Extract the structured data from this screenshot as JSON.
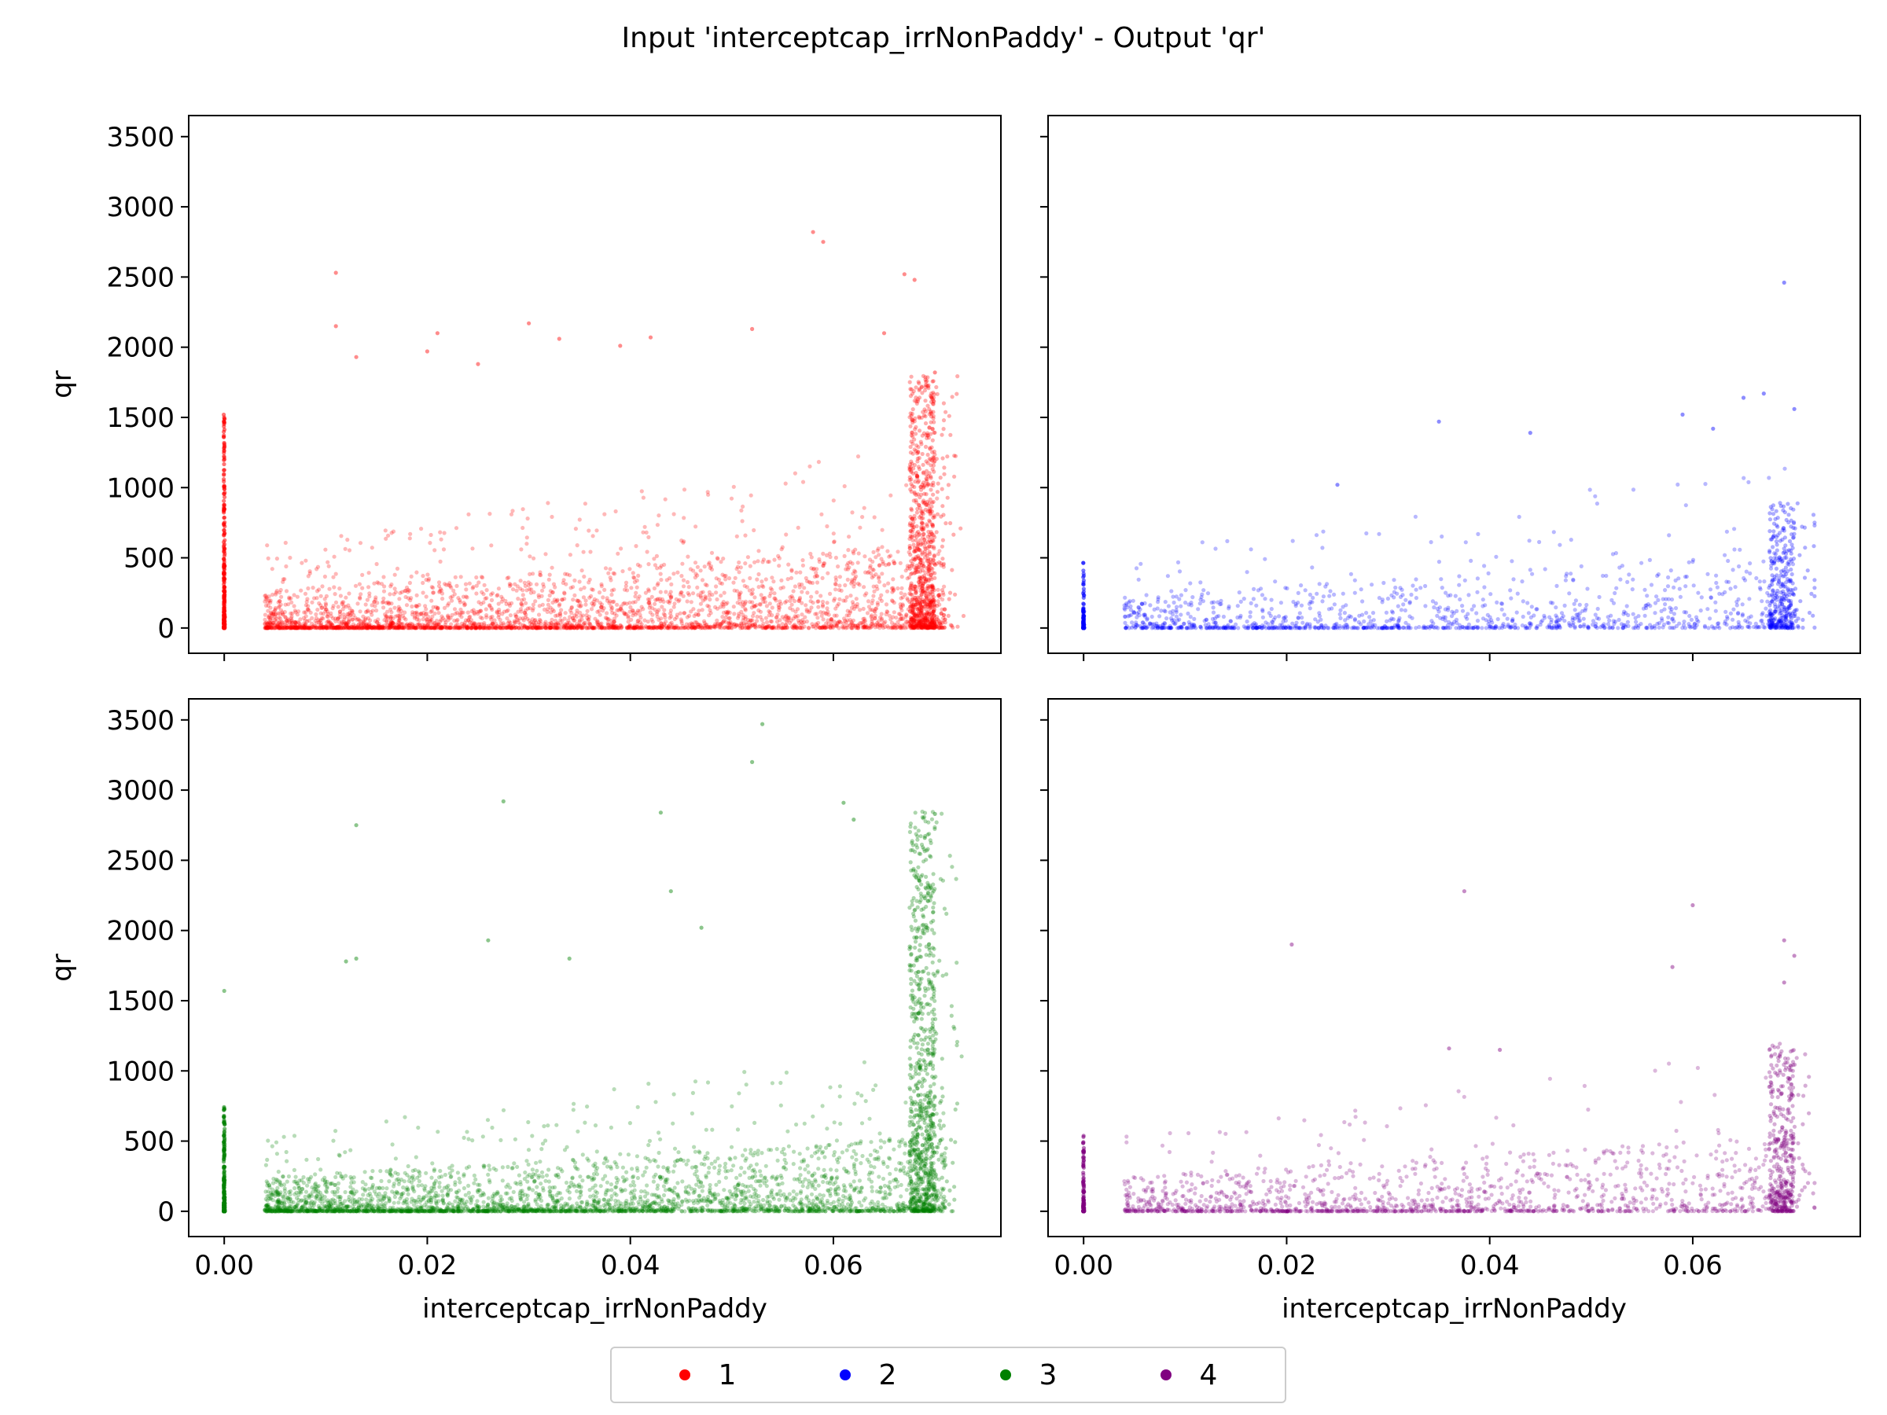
{
  "figure": {
    "suptitle": "Input 'interceptcap_irrNonPaddy' - Output 'qr'"
  },
  "legend": {
    "entries": [
      {
        "label": "1",
        "color": "#ff0000"
      },
      {
        "label": "2",
        "color": "#0000ff"
      },
      {
        "label": "3",
        "color": "#008000"
      },
      {
        "label": "4",
        "color": "#800080"
      }
    ]
  },
  "chart_data": [
    {
      "type": "scatter",
      "panel": "top-left",
      "series_label": "1",
      "color": "#ff0000",
      "xlabel": "",
      "ylabel": "qr",
      "xlim": [
        -0.0035,
        0.0765
      ],
      "ylim": [
        -180,
        3650
      ],
      "xticks": [
        0.0,
        0.02,
        0.04,
        0.06
      ],
      "show_xtick_labels": false,
      "yticks": [
        0,
        500,
        1000,
        1500,
        2000,
        2500,
        3000,
        3500
      ],
      "show_ytick_labels": true,
      "ytick_labels": [
        "0",
        "500",
        "1000",
        "1500",
        "2000",
        "2500",
        "3000",
        "3500"
      ],
      "distribution": {
        "point_count": 4200,
        "x_range": [
          0.0,
          0.073
        ],
        "typical_y_max": 500,
        "right_edge_cluster_x": 0.07,
        "right_edge_cluster_y_max": 1800,
        "zero_column_y_max": 1520
      },
      "outliers": [
        [
          0.011,
          2530
        ],
        [
          0.011,
          2150
        ],
        [
          0.013,
          1930
        ],
        [
          0.02,
          1970
        ],
        [
          0.021,
          2100
        ],
        [
          0.025,
          1880
        ],
        [
          0.03,
          2170
        ],
        [
          0.033,
          2060
        ],
        [
          0.039,
          2010
        ],
        [
          0.042,
          2070
        ],
        [
          0.052,
          2130
        ],
        [
          0.058,
          2820
        ],
        [
          0.059,
          2750
        ],
        [
          0.067,
          2520
        ],
        [
          0.068,
          2480
        ],
        [
          0.065,
          2100
        ],
        [
          0.07,
          1820
        ]
      ]
    },
    {
      "type": "scatter",
      "panel": "top-right",
      "series_label": "2",
      "color": "#0000ff",
      "xlabel": "",
      "ylabel": "",
      "xlim": [
        -0.0035,
        0.0765
      ],
      "ylim": [
        -180,
        3650
      ],
      "xticks": [
        0.0,
        0.02,
        0.04,
        0.06
      ],
      "show_xtick_labels": false,
      "yticks": [
        0,
        500,
        1000,
        1500,
        2000,
        2500,
        3000,
        3500
      ],
      "show_ytick_labels": false,
      "distribution": {
        "point_count": 1600,
        "x_range": [
          0.0,
          0.072
        ],
        "typical_y_max": 450,
        "right_edge_cluster_x": 0.07,
        "right_edge_cluster_y_max": 900,
        "zero_column_y_max": 480
      },
      "outliers": [
        [
          0.069,
          2460
        ],
        [
          0.07,
          1560
        ],
        [
          0.067,
          1670
        ],
        [
          0.065,
          1640
        ],
        [
          0.059,
          1520
        ],
        [
          0.044,
          1390
        ],
        [
          0.035,
          1470
        ],
        [
          0.025,
          1020
        ],
        [
          0.062,
          1420
        ]
      ]
    },
    {
      "type": "scatter",
      "panel": "bottom-left",
      "series_label": "3",
      "color": "#008000",
      "xlabel": "interceptcap_irrNonPaddy",
      "ylabel": "qr",
      "xlim": [
        -0.0035,
        0.0765
      ],
      "ylim": [
        -180,
        3650
      ],
      "xticks": [
        0.0,
        0.02,
        0.04,
        0.06
      ],
      "show_xtick_labels": true,
      "xtick_labels": [
        "0.00",
        "0.02",
        "0.04",
        "0.06"
      ],
      "yticks": [
        0,
        500,
        1000,
        1500,
        2000,
        2500,
        3000,
        3500
      ],
      "show_ytick_labels": true,
      "ytick_labels": [
        "0",
        "500",
        "1000",
        "1500",
        "2000",
        "2500",
        "3000",
        "3500"
      ],
      "distribution": {
        "point_count": 4200,
        "x_range": [
          0.0,
          0.073
        ],
        "typical_y_max": 450,
        "right_edge_cluster_x": 0.07,
        "right_edge_cluster_y_max": 2850,
        "zero_column_y_max": 750
      },
      "outliers": [
        [
          0.0,
          1570
        ],
        [
          0.013,
          2750
        ],
        [
          0.0275,
          2920
        ],
        [
          0.043,
          2840
        ],
        [
          0.044,
          2280
        ],
        [
          0.052,
          3200
        ],
        [
          0.053,
          3470
        ],
        [
          0.061,
          2910
        ],
        [
          0.062,
          2790
        ],
        [
          0.069,
          2660
        ],
        [
          0.07,
          2830
        ],
        [
          0.047,
          2020
        ],
        [
          0.034,
          1800
        ],
        [
          0.026,
          1930
        ],
        [
          0.012,
          1780
        ],
        [
          0.013,
          1800
        ],
        [
          0.069,
          2230
        ]
      ]
    },
    {
      "type": "scatter",
      "panel": "bottom-right",
      "series_label": "4",
      "color": "#800080",
      "xlabel": "interceptcap_irrNonPaddy",
      "ylabel": "",
      "xlim": [
        -0.0035,
        0.0765
      ],
      "ylim": [
        -180,
        3650
      ],
      "xticks": [
        0.0,
        0.02,
        0.04,
        0.06
      ],
      "show_xtick_labels": true,
      "xtick_labels": [
        "0.00",
        "0.02",
        "0.04",
        "0.06"
      ],
      "yticks": [
        0,
        500,
        1000,
        1500,
        2000,
        2500,
        3000,
        3500
      ],
      "show_ytick_labels": false,
      "distribution": {
        "point_count": 1900,
        "x_range": [
          0.0,
          0.072
        ],
        "typical_y_max": 450,
        "right_edge_cluster_x": 0.07,
        "right_edge_cluster_y_max": 1200,
        "zero_column_y_max": 540
      },
      "outliers": [
        [
          0.0205,
          1900
        ],
        [
          0.0375,
          2280
        ],
        [
          0.06,
          2180
        ],
        [
          0.058,
          1740
        ],
        [
          0.069,
          1930
        ],
        [
          0.07,
          1820
        ],
        [
          0.069,
          1630
        ],
        [
          0.036,
          1160
        ],
        [
          0.041,
          1150
        ]
      ]
    }
  ]
}
